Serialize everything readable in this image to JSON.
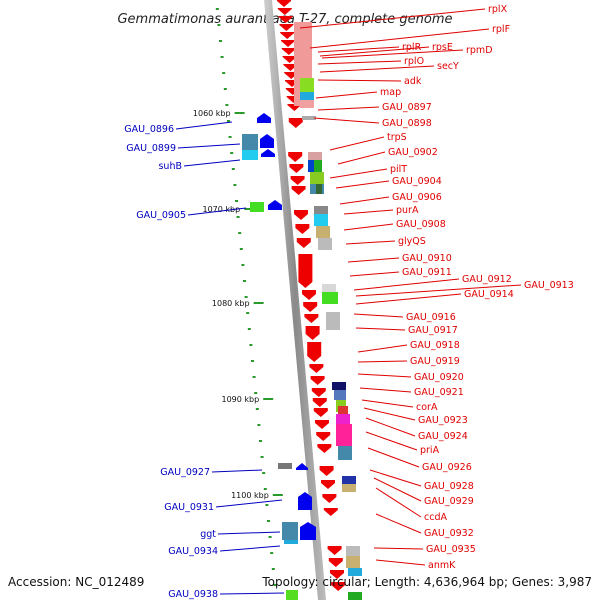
{
  "title": "Gemmatimonas aurantiaca T-27, complete genome",
  "footer": {
    "accession": "Accession: NC_012489",
    "stats": "Topology: circular; Length: 4,636,964 bp; Genes: 3,987"
  },
  "kbp_labels": [
    "1060 kbp",
    "1070 kbp",
    "1080 kbp",
    "1090 kbp",
    "1100 kbp"
  ],
  "labels_right": [
    "rplX",
    "rplF",
    "rplR",
    "rpsE",
    "rpmD",
    "rplO",
    "secY",
    "adk",
    "map",
    "GAU_0897",
    "GAU_0898",
    "trpS",
    "GAU_0902",
    "pilT",
    "GAU_0904",
    "GAU_0906",
    "purA",
    "GAU_0908",
    "glyQS",
    "GAU_0910",
    "GAU_0911",
    "GAU_0912",
    "GAU_0913",
    "GAU_0914",
    "GAU_0916",
    "GAU_0917",
    "GAU_0918",
    "GAU_0919",
    "GAU_0920",
    "GAU_0921",
    "corA",
    "GAU_0923",
    "GAU_0924",
    "priA",
    "GAU_0926",
    "GAU_0928",
    "GAU_0929",
    "ccdA",
    "GAU_0932",
    "GAU_0935",
    "anmK"
  ],
  "labels_left": [
    "GAU_0896",
    "GAU_0899",
    "suhB",
    "GAU_0905",
    "GAU_0927",
    "GAU_0931",
    "ggt",
    "GAU_0934",
    "GAU_0938"
  ],
  "colors": {
    "forward": "#ee0000",
    "reverse": "#0000ee",
    "backbone": "#999999"
  }
}
